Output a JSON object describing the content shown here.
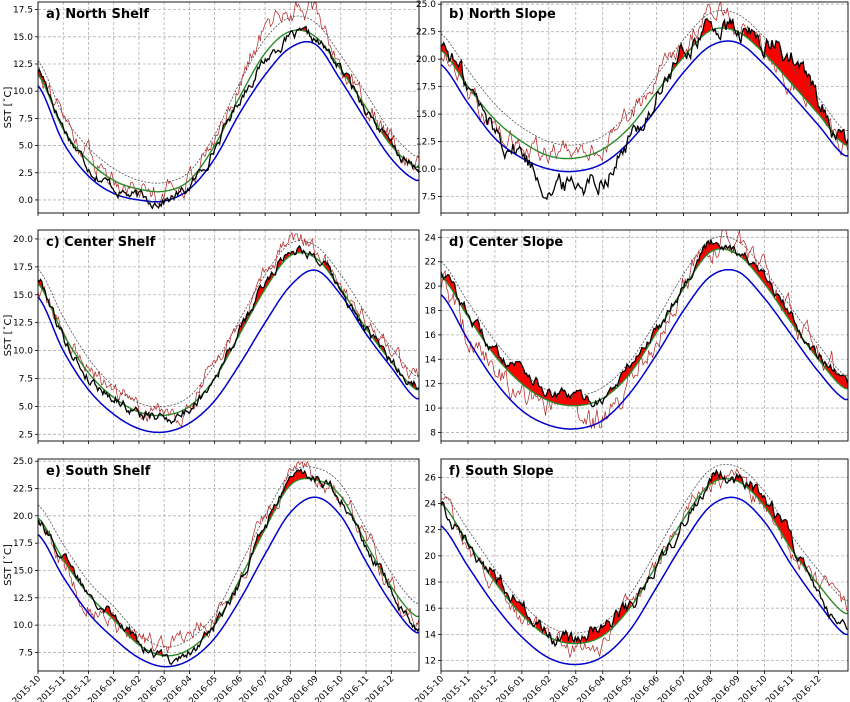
{
  "figure": {
    "x_ticks": [
      "2015-10",
      "2015-11",
      "2015-12",
      "2016-01",
      "2016-02",
      "2016-03",
      "2016-04",
      "2016-05",
      "2016-06",
      "2016-07",
      "2016-08",
      "2016-09",
      "2016-10",
      "2016-11",
      "2016-12"
    ],
    "colors": {
      "observed": "#000000",
      "climatology": "#2a8a2a",
      "threshold_90": "#505050",
      "cold_line": "#0000cc",
      "raw": "#b22222",
      "heatwave": "#ff0000"
    }
  },
  "chart_data": [
    {
      "id": "north-shelf",
      "type": "line",
      "title": "a) North Shelf",
      "ylabel": "SST [ˇC]",
      "ylim": [
        -1.2,
        18.2
      ],
      "yticks": [
        "0.0",
        "2.5",
        "5.0",
        "7.5",
        "10.0",
        "12.5",
        "15.0",
        "17.5"
      ],
      "min_month": 5,
      "clim_min": 0.8,
      "clim_max": 15.6,
      "series": [
        {
          "name": "climatology",
          "values": [
            11.5,
            6.5,
            3.6,
            1.8,
            1.0,
            0.8,
            1.8,
            5.0,
            9.5,
            13.5,
            15.5,
            15.0,
            12.0,
            8.5,
            5.0,
            3.0
          ]
        },
        {
          "name": "threshold",
          "values": [
            12.8,
            7.8,
            4.8,
            2.9,
            1.8,
            1.6,
            2.6,
            6.0,
            10.8,
            14.8,
            16.8,
            16.3,
            13.3,
            9.8,
            6.2,
            4.0
          ]
        },
        {
          "name": "blue",
          "values": [
            10.5,
            5.3,
            2.2,
            0.6,
            0.0,
            -0.1,
            1.0,
            3.8,
            8.0,
            11.5,
            14.0,
            14.3,
            11.0,
            7.3,
            3.8,
            1.8
          ]
        },
        {
          "name": "observed",
          "values": [
            12.0,
            6.8,
            3.2,
            1.2,
            0.2,
            0.0,
            1.2,
            4.8,
            9.3,
            12.8,
            14.9,
            14.6,
            12.0,
            8.5,
            5.0,
            2.8
          ]
        },
        {
          "name": "raw",
          "values": [
            12.5,
            7.5,
            4.2,
            2.2,
            1.2,
            1.0,
            2.2,
            5.5,
            11.0,
            15.5,
            17.5,
            17.2,
            12.5,
            9.0,
            5.5,
            3.2
          ]
        }
      ],
      "noise_obs": 0.35,
      "noise_raw": 0.6
    },
    {
      "id": "north-slope",
      "type": "line",
      "title": "b) North Slope",
      "ylabel": "",
      "ylim": [
        6.0,
        25.2
      ],
      "yticks": [
        "7.5",
        "10.0",
        "12.5",
        "15.0",
        "17.5",
        "20.0",
        "22.5",
        "25.0"
      ],
      "min_month": 5,
      "clim_min": 11.0,
      "clim_max": 23.0,
      "series": [
        {
          "name": "climatology",
          "values": [
            20.8,
            17.5,
            14.5,
            12.5,
            11.2,
            11.0,
            11.8,
            13.8,
            17.0,
            20.2,
            22.6,
            22.5,
            20.5,
            17.8,
            15.0,
            12.2
          ]
        },
        {
          "name": "threshold",
          "values": [
            22.3,
            19.0,
            15.9,
            13.8,
            12.5,
            12.2,
            13.0,
            15.2,
            18.5,
            21.8,
            24.2,
            24.1,
            22.0,
            19.3,
            16.5,
            13.5
          ]
        },
        {
          "name": "blue",
          "values": [
            19.5,
            16.0,
            12.8,
            11.0,
            10.0,
            9.8,
            10.5,
            12.5,
            15.5,
            18.8,
            21.2,
            21.5,
            19.5,
            16.8,
            14.0,
            11.2
          ]
        },
        {
          "name": "observed",
          "values": [
            21.5,
            17.5,
            13.5,
            11.5,
            8.5,
            8.8,
            9.5,
            12.5,
            16.5,
            20.5,
            22.8,
            22.3,
            21.5,
            20.0,
            16.5,
            12.0
          ]
        },
        {
          "name": "raw",
          "values": [
            20.5,
            17.0,
            14.0,
            12.5,
            11.5,
            11.5,
            12.5,
            14.5,
            18.0,
            21.5,
            24.0,
            23.5,
            21.0,
            18.0,
            15.5,
            12.5
          ]
        }
      ],
      "noise_obs": 0.7,
      "noise_raw": 0.6
    },
    {
      "id": "center-shelf",
      "type": "line",
      "title": "c) Center Shelf",
      "ylabel": "SST [ˇC]",
      "ylim": [
        1.9,
        20.8
      ],
      "yticks": [
        "2.5",
        "5.0",
        "7.5",
        "10.0",
        "12.5",
        "15.0",
        "17.5",
        "20.0"
      ],
      "min_month": 5,
      "clim_min": 4.2,
      "clim_max": 18.8,
      "series": [
        {
          "name": "climatology",
          "values": [
            16.0,
            11.5,
            8.0,
            5.8,
            4.5,
            4.2,
            5.0,
            7.5,
            11.5,
            15.5,
            18.5,
            18.3,
            15.5,
            12.0,
            9.0,
            6.5
          ]
        },
        {
          "name": "threshold",
          "values": [
            17.3,
            13.0,
            9.3,
            6.8,
            5.3,
            5.0,
            5.9,
            8.8,
            12.8,
            16.8,
            19.6,
            19.4,
            16.8,
            13.3,
            10.3,
            7.7
          ]
        },
        {
          "name": "blue",
          "values": [
            14.8,
            10.0,
            6.5,
            4.3,
            3.0,
            2.7,
            3.5,
            5.5,
            8.8,
            12.5,
            15.8,
            17.2,
            15.0,
            11.5,
            8.5,
            5.7
          ]
        },
        {
          "name": "observed",
          "values": [
            16.5,
            11.3,
            7.6,
            5.9,
            4.4,
            4.0,
            4.8,
            7.8,
            11.7,
            16.0,
            19.0,
            18.5,
            15.2,
            11.8,
            9.0,
            7.0
          ]
        },
        {
          "name": "raw",
          "values": [
            15.5,
            11.8,
            8.5,
            6.5,
            5.2,
            4.6,
            5.3,
            9.0,
            12.0,
            16.8,
            19.8,
            19.0,
            15.8,
            12.5,
            10.0,
            7.6
          ]
        }
      ],
      "noise_obs": 0.35,
      "noise_raw": 0.5
    },
    {
      "id": "center-slope",
      "type": "line",
      "title": "d) Center Slope",
      "ylabel": "",
      "ylim": [
        7.3,
        24.6
      ],
      "yticks": [
        "8",
        "10",
        "12",
        "14",
        "16",
        "18",
        "20",
        "22",
        "24"
      ],
      "min_month": 5,
      "clim_min": 10.2,
      "clim_max": 23.0,
      "series": [
        {
          "name": "climatology",
          "values": [
            20.8,
            17.5,
            14.3,
            12.0,
            10.6,
            10.2,
            10.8,
            12.8,
            16.2,
            19.8,
            22.8,
            22.6,
            20.2,
            17.0,
            14.0,
            11.6
          ]
        },
        {
          "name": "threshold",
          "values": [
            22.0,
            18.7,
            15.5,
            13.0,
            11.4,
            11.0,
            11.7,
            13.8,
            17.2,
            21.0,
            23.8,
            23.7,
            21.3,
            18.2,
            15.2,
            12.7
          ]
        },
        {
          "name": "blue",
          "values": [
            19.3,
            15.6,
            12.2,
            9.8,
            8.6,
            8.3,
            9.0,
            11.2,
            14.4,
            18.0,
            20.8,
            21.2,
            19.0,
            16.0,
            13.0,
            10.7
          ]
        },
        {
          "name": "observed",
          "values": [
            21.3,
            17.8,
            14.6,
            13.5,
            11.2,
            10.9,
            10.8,
            13.5,
            16.5,
            20.2,
            23.5,
            23.0,
            20.5,
            17.5,
            14.5,
            11.8
          ]
        },
        {
          "name": "raw",
          "values": [
            20.0,
            16.0,
            13.0,
            11.0,
            10.0,
            9.5,
            9.0,
            12.0,
            16.0,
            20.0,
            23.5,
            23.2,
            20.8,
            17.5,
            14.8,
            12.5
          ]
        }
      ],
      "noise_obs": 0.35,
      "noise_raw": 0.7
    },
    {
      "id": "south-shelf",
      "type": "line",
      "title": "e) South Shelf",
      "ylabel": "SST [ˇC]",
      "ylim": [
        5.8,
        25.2
      ],
      "yticks": [
        "7.5",
        "10.0",
        "12.5",
        "15.0",
        "17.5",
        "20.0",
        "22.5",
        "25.0"
      ],
      "min_month": 5,
      "clim_min": 7.2,
      "clim_max": 23.6,
      "series": [
        {
          "name": "climatology",
          "values": [
            19.8,
            16.0,
            12.8,
            10.5,
            8.2,
            7.2,
            7.8,
            10.0,
            14.2,
            18.8,
            22.8,
            23.3,
            21.8,
            17.5,
            13.5,
            10.8
          ]
        },
        {
          "name": "threshold",
          "values": [
            21.0,
            17.4,
            14.0,
            11.7,
            9.2,
            8.0,
            8.7,
            11.0,
            15.4,
            20.0,
            23.9,
            24.4,
            22.9,
            18.8,
            14.8,
            12.0
          ]
        },
        {
          "name": "blue",
          "values": [
            18.3,
            14.4,
            11.1,
            8.8,
            7.0,
            6.2,
            6.8,
            8.8,
            12.3,
            16.5,
            20.3,
            21.7,
            20.0,
            15.8,
            12.0,
            9.3
          ]
        },
        {
          "name": "observed",
          "values": [
            19.8,
            16.2,
            13.1,
            11.3,
            8.3,
            7.0,
            7.7,
            10.0,
            14.0,
            19.0,
            23.1,
            23.5,
            21.7,
            17.0,
            13.3,
            9.5
          ]
        },
        {
          "name": "raw",
          "values": [
            19.5,
            15.5,
            12.0,
            10.5,
            8.5,
            7.8,
            9.5,
            10.5,
            14.5,
            19.5,
            23.5,
            23.5,
            22.0,
            18.0,
            13.8,
            10.5
          ]
        }
      ],
      "noise_obs": 0.35,
      "noise_raw": 0.55
    },
    {
      "id": "south-slope",
      "type": "line",
      "title": "f) South Slope",
      "ylabel": "",
      "ylim": [
        11.2,
        27.4
      ],
      "yticks": [
        "12",
        "14",
        "16",
        "18",
        "20",
        "22",
        "24",
        "26"
      ],
      "min_month": 5,
      "clim_min": 13.3,
      "clim_max": 26.0,
      "series": [
        {
          "name": "climatology",
          "values": [
            24.0,
            21.0,
            18.0,
            15.5,
            13.8,
            13.3,
            13.9,
            16.0,
            19.3,
            22.8,
            25.5,
            25.7,
            23.8,
            20.5,
            17.8,
            15.6
          ]
        },
        {
          "name": "threshold",
          "values": [
            24.9,
            22.0,
            19.0,
            16.4,
            14.6,
            14.1,
            14.8,
            17.0,
            20.4,
            23.9,
            26.6,
            26.8,
            24.9,
            21.6,
            18.9,
            16.6
          ]
        },
        {
          "name": "blue",
          "values": [
            22.3,
            19.2,
            16.2,
            13.8,
            12.2,
            11.7,
            12.3,
            14.3,
            17.6,
            21.0,
            23.8,
            24.4,
            22.6,
            19.3,
            16.4,
            14.0
          ]
        },
        {
          "name": "observed",
          "values": [
            24.0,
            21.0,
            18.5,
            16.3,
            14.0,
            13.6,
            14.8,
            16.2,
            19.2,
            22.5,
            26.0,
            25.8,
            24.5,
            21.0,
            17.8,
            14.2
          ]
        },
        {
          "name": "raw",
          "values": [
            24.5,
            20.5,
            17.5,
            15.0,
            13.8,
            12.8,
            13.5,
            16.5,
            19.5,
            22.8,
            25.8,
            25.5,
            23.5,
            20.0,
            18.0,
            16.0
          ]
        }
      ],
      "noise_obs": 0.4,
      "noise_raw": 0.45
    }
  ]
}
